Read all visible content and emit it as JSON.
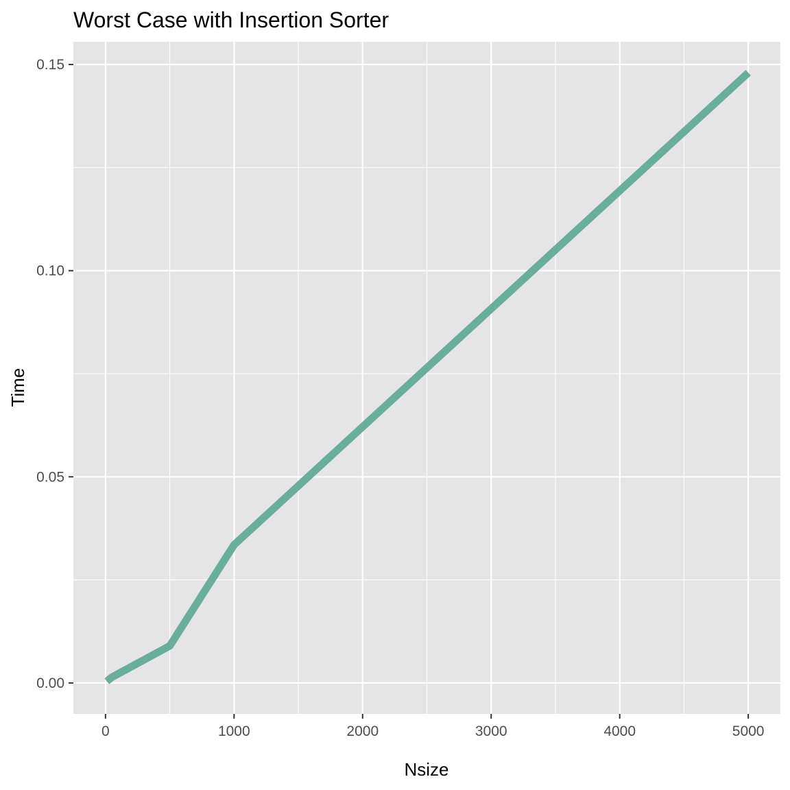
{
  "chart_data": {
    "type": "line",
    "title": "Worst Case with Insertion Sorter",
    "xlabel": "Nsize",
    "ylabel": "Time",
    "xlim": [
      -250,
      5250
    ],
    "ylim": [
      -0.0075,
      0.1555
    ],
    "x_ticks": [
      0,
      1000,
      2000,
      3000,
      4000,
      5000
    ],
    "x_tick_labels": [
      "0",
      "1000",
      "2000",
      "3000",
      "4000",
      "5000"
    ],
    "x_minor_ticks": [
      500,
      1500,
      2500,
      3500,
      4500
    ],
    "y_ticks": [
      0,
      0.05,
      0.1,
      0.15
    ],
    "y_tick_labels": [
      "0.00",
      "0.05",
      "0.10",
      "0.15"
    ],
    "y_minor_ticks": [
      0.025,
      0.075,
      0.125
    ],
    "grid": true,
    "legend": "none",
    "colors": {
      "panel": "#e5e5e5",
      "grid": "#ffffff",
      "line": "#69ae9a",
      "tick_mark": "#333333"
    },
    "series": [
      {
        "x": [
          10,
          50,
          500,
          1000,
          5000
        ],
        "y": [
          0.0004,
          0.0014,
          0.009,
          0.0335,
          0.148
        ]
      }
    ]
  }
}
